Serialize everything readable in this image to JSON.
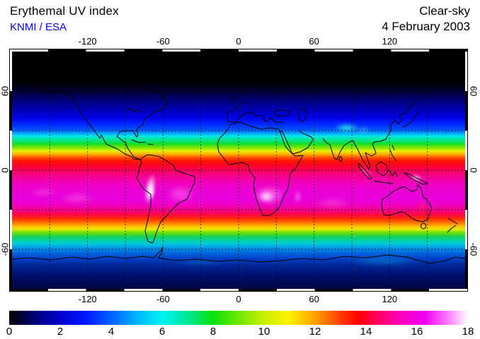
{
  "header": {
    "title": "Erythemal UV index",
    "source": "KNMI / ESA",
    "source_color": "#0000ee",
    "condition": "Clear-sky",
    "date": "4 February 2003"
  },
  "axes": {
    "lon_ticks": [
      {
        "v": -120,
        "label": "-120"
      },
      {
        "v": -60,
        "label": "-60"
      },
      {
        "v": 0,
        "label": "0"
      },
      {
        "v": 60,
        "label": "60"
      },
      {
        "v": 120,
        "label": "120"
      }
    ],
    "lat_ticks": [
      {
        "v": 60,
        "label": "60"
      },
      {
        "v": 0,
        "label": "0"
      },
      {
        "v": -60,
        "label": "-60"
      }
    ],
    "grid_lon_step_deg": 30,
    "grid_lat_step_deg": 30
  },
  "colorbar": {
    "min": 0,
    "max": 18,
    "tick_values": [
      0,
      2,
      4,
      6,
      8,
      10,
      12,
      14,
      16,
      18
    ],
    "stops": [
      {
        "value": 0,
        "color": "#000000"
      },
      {
        "value": 1,
        "color": "#000078"
      },
      {
        "value": 2,
        "color": "#0000cd"
      },
      {
        "value": 3,
        "color": "#0018ff"
      },
      {
        "value": 4,
        "color": "#0060ff"
      },
      {
        "value": 5,
        "color": "#00b4ff"
      },
      {
        "value": 6,
        "color": "#00f2f2"
      },
      {
        "value": 7,
        "color": "#00e896"
      },
      {
        "value": 8,
        "color": "#0ae00a"
      },
      {
        "value": 9,
        "color": "#6ee800"
      },
      {
        "value": 10,
        "color": "#c8f000"
      },
      {
        "value": 11,
        "color": "#fff000"
      },
      {
        "value": 12,
        "color": "#ffa000"
      },
      {
        "value": 13,
        "color": "#ff3c00"
      },
      {
        "value": 13.7,
        "color": "#ff0000"
      },
      {
        "value": 14.5,
        "color": "#ff0064"
      },
      {
        "value": 15.5,
        "color": "#fa00c8"
      },
      {
        "value": 16.3,
        "color": "#f000f0"
      },
      {
        "value": 17.2,
        "color": "#ff78ff"
      },
      {
        "value": 18,
        "color": "#ffffff"
      }
    ]
  },
  "chart_data": {
    "type": "heatmap",
    "title": "Erythemal UV index",
    "source": "KNMI / ESA",
    "condition": "Clear-sky",
    "date": "4 February 2003",
    "projection": "equirectangular",
    "lon_range": [
      -180,
      180
    ],
    "lat_range": [
      -90,
      90
    ],
    "scale_range": [
      0,
      18
    ],
    "units": "UV index",
    "grid_step_deg": 30,
    "polar_night_black_above_lat": 68,
    "zonal_profile": [
      {
        "lat": 90,
        "uv": 0,
        "color": "#000000"
      },
      {
        "lat": 68,
        "uv": 0,
        "color": "#000000"
      },
      {
        "lat": 60,
        "uv": 0.4,
        "color": "#000030"
      },
      {
        "lat": 53,
        "uv": 1,
        "color": "#000078"
      },
      {
        "lat": 46,
        "uv": 1.8,
        "color": "#0000b4"
      },
      {
        "lat": 40,
        "uv": 2.5,
        "color": "#0000e6"
      },
      {
        "lat": 35,
        "uv": 3.2,
        "color": "#0028ff"
      },
      {
        "lat": 31,
        "uv": 4,
        "color": "#0050ff"
      },
      {
        "lat": 28,
        "uv": 5,
        "color": "#00a0ff"
      },
      {
        "lat": 26,
        "uv": 5.8,
        "color": "#00e6e6"
      },
      {
        "lat": 23,
        "uv": 6.8,
        "color": "#00e696"
      },
      {
        "lat": 20,
        "uv": 7.8,
        "color": "#14dc28"
      },
      {
        "lat": 17,
        "uv": 9,
        "color": "#82e600"
      },
      {
        "lat": 14.5,
        "uv": 10.5,
        "color": "#e6f000"
      },
      {
        "lat": 12,
        "uv": 11.5,
        "color": "#ffaa00"
      },
      {
        "lat": 9.5,
        "uv": 12.3,
        "color": "#ff5000"
      },
      {
        "lat": 7,
        "uv": 13,
        "color": "#ff1400"
      },
      {
        "lat": 3,
        "uv": 13.8,
        "color": "#ff0032"
      },
      {
        "lat": 0,
        "uv": 14.2,
        "color": "#fa005a"
      },
      {
        "lat": -5,
        "uv": 14.8,
        "color": "#f50096"
      },
      {
        "lat": -10,
        "uv": 15.3,
        "color": "#f000be"
      },
      {
        "lat": -16,
        "uv": 15.8,
        "color": "#ea00d7"
      },
      {
        "lat": -22,
        "uv": 15.8,
        "color": "#e800dc"
      },
      {
        "lat": -27,
        "uv": 15.3,
        "color": "#f000be"
      },
      {
        "lat": -31,
        "uv": 14.5,
        "color": "#fa0082"
      },
      {
        "lat": -34,
        "uv": 13.8,
        "color": "#ff0a3c"
      },
      {
        "lat": -37,
        "uv": 13,
        "color": "#ff3200"
      },
      {
        "lat": -40,
        "uv": 12,
        "color": "#ff7800"
      },
      {
        "lat": -43,
        "uv": 11,
        "color": "#ffc800"
      },
      {
        "lat": -45,
        "uv": 10.3,
        "color": "#dcea00"
      },
      {
        "lat": -47,
        "uv": 9.3,
        "color": "#78e100"
      },
      {
        "lat": -50,
        "uv": 8.2,
        "color": "#1ed24b"
      },
      {
        "lat": -53,
        "uv": 7,
        "color": "#00d2a0"
      },
      {
        "lat": -56,
        "uv": 6,
        "color": "#00c8dc"
      },
      {
        "lat": -59,
        "uv": 5,
        "color": "#0096e6"
      },
      {
        "lat": -63,
        "uv": 4,
        "color": "#0064dc"
      },
      {
        "lat": -67,
        "uv": 3.2,
        "color": "#0041c8"
      },
      {
        "lat": -72,
        "uv": 2.4,
        "color": "#002898"
      },
      {
        "lat": -78,
        "uv": 1.8,
        "color": "#001478"
      },
      {
        "lat": -84,
        "uv": 1.4,
        "color": "#000a5a"
      },
      {
        "lat": -90,
        "uv": 1.2,
        "color": "#000646"
      }
    ],
    "hotspots": [
      {
        "name": "andes-high-uv",
        "lon": -70.5,
        "lat": -14,
        "rlon": 4,
        "rlat": 12,
        "color": "#ffffff",
        "opacity": 0.85,
        "rotate": 10
      },
      {
        "name": "altiplano-core",
        "lon": -69.5,
        "lat": -17,
        "rlon": 2.5,
        "rlat": 6,
        "color": "#ffffff",
        "opacity": 0.95,
        "rotate": 8
      },
      {
        "name": "brazil-bright",
        "lon": -46,
        "lat": -18,
        "rlon": 12,
        "rlat": 7,
        "color": "#ff6ee6",
        "opacity": 0.5,
        "rotate": 0
      },
      {
        "name": "southern-africa-bright",
        "lon": 24,
        "lat": -19,
        "rlon": 13,
        "rlat": 8,
        "color": "#ff96f0",
        "opacity": 0.6,
        "rotate": 0
      },
      {
        "name": "southern-africa-core",
        "lon": 22,
        "lat": -20,
        "rlon": 6,
        "rlat": 4,
        "color": "#ffffff",
        "opacity": 0.65,
        "rotate": 0
      },
      {
        "name": "madagascar-bright",
        "lon": 47,
        "lat": -20,
        "rlon": 3,
        "rlat": 5,
        "color": "#ff96f0",
        "opacity": 0.5,
        "rotate": 0
      },
      {
        "name": "new-guinea-high-uv",
        "lon": 141,
        "lat": -5.5,
        "rlon": 5,
        "rlat": 2,
        "color": "#ffffff",
        "opacity": 0.85,
        "rotate": 15
      },
      {
        "name": "sumatra-bright",
        "lon": 101,
        "lat": -1.5,
        "rlon": 7,
        "rlat": 2.5,
        "color": "#ff8ce6",
        "opacity": 0.55,
        "rotate": 38
      },
      {
        "name": "tibet-cyan",
        "lon": 86,
        "lat": 32,
        "rlon": 10,
        "rlat": 4,
        "color": "#32e6dc",
        "opacity": 0.75,
        "rotate": 0
      },
      {
        "name": "tibet-cyan-east",
        "lon": 99,
        "lat": 30,
        "rlon": 6,
        "rlat": 3,
        "color": "#50d2f0",
        "opacity": 0.45,
        "rotate": 0
      },
      {
        "name": "south-pacific-bright",
        "lon": -128,
        "lat": -21,
        "rlon": 15,
        "rlat": 5,
        "color": "#ff78dc",
        "opacity": 0.35,
        "rotate": 0
      },
      {
        "name": "south-pacific-bright-2",
        "lon": -155,
        "lat": -17,
        "rlon": 11,
        "rlat": 4,
        "color": "#ff78dc",
        "opacity": 0.3,
        "rotate": 0
      },
      {
        "name": "south-indian-bright",
        "lon": 75,
        "lat": -25,
        "rlon": 14,
        "rlat": 5,
        "color": "#ff78dc",
        "opacity": 0.3,
        "rotate": 0
      },
      {
        "name": "east-australia-red",
        "lon": 146,
        "lat": -29,
        "rlon": 3,
        "rlat": 8,
        "color": "#ff3c14",
        "opacity": 0.35,
        "rotate": 0
      },
      {
        "name": "antarctica-albedo-cyan",
        "lon": 115,
        "lat": -69,
        "rlon": 28,
        "rlat": 4,
        "color": "#00bedc",
        "opacity": 0.3,
        "rotate": 0
      },
      {
        "name": "antarctica-albedo-cyan-2",
        "lon": -30,
        "lat": -70,
        "rlon": 20,
        "rlat": 3,
        "color": "#0096dc",
        "opacity": 0.25,
        "rotate": 0
      }
    ]
  }
}
